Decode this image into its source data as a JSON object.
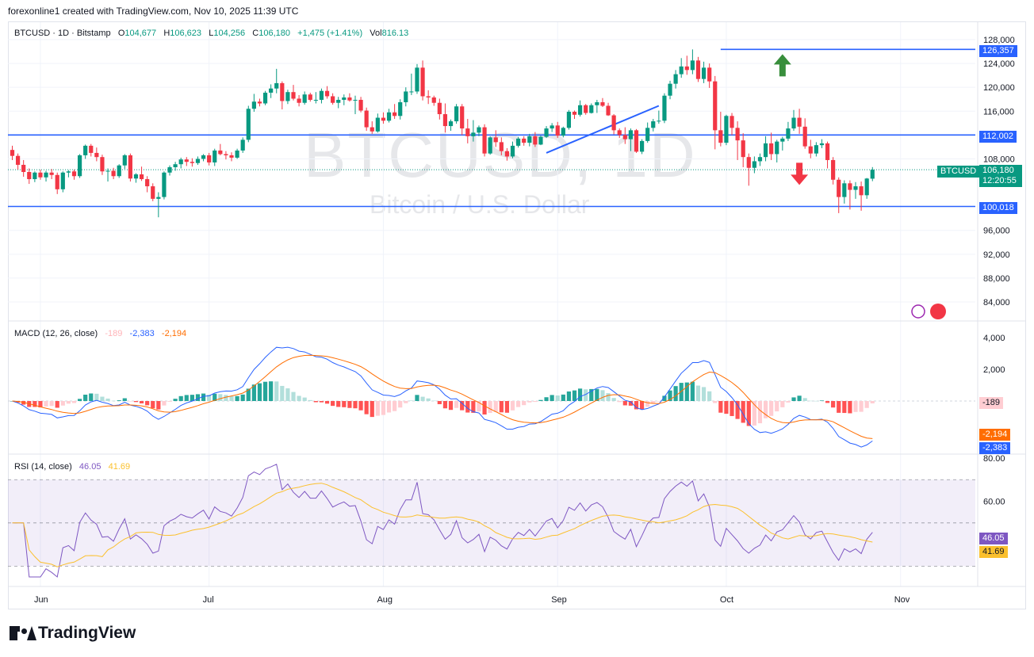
{
  "header": {
    "attribution": "forexonline1 created with TradingView.com, Nov 10, 2025 11:39 UTC"
  },
  "legend": {
    "symbol": "BTCUSD · 1D · Bitstamp",
    "open_label": "O",
    "open": "104,677",
    "high_label": "H",
    "high": "106,623",
    "low_label": "L",
    "low": "104,256",
    "close_label": "C",
    "close": "106,180",
    "change": "+1,475 (+1.41%)",
    "vol_label": "Vol",
    "vol": "816.13"
  },
  "watermark": {
    "symbol": "BTCUSD, 1D",
    "name": "Bitcoin / U.S. Dollar"
  },
  "price_axis": {
    "ticks": [
      "128,000",
      "124,000",
      "120,000",
      "116,000",
      "112,000",
      "108,000",
      "96,000",
      "92,000",
      "88,000",
      "84,000"
    ]
  },
  "price_tags": {
    "resistance": "126,357",
    "mid": "112,002",
    "support": "100,018",
    "symbol_tag": "BTCUSD",
    "last": "106,180",
    "countdown": "12:20:55"
  },
  "macd": {
    "label": "MACD (12, 26, close)",
    "hist": "-189",
    "macd": "-2,383",
    "signal": "-2,194",
    "ticks": [
      "4,000",
      "2,000"
    ],
    "tag_hist": "-189",
    "tag_signal": "-2,194",
    "tag_macd": "-2,383"
  },
  "rsi": {
    "label": "RSI (14, close)",
    "value": "46.05",
    "ma": "41.69",
    "ticks": [
      "80.00",
      "60.00"
    ],
    "tag_value": "46.05",
    "tag_ma": "41.69"
  },
  "time_axis": {
    "labels": [
      "Jun",
      "Jul",
      "Aug",
      "Sep",
      "Oct",
      "Nov"
    ]
  },
  "brand": {
    "name": "TradingView"
  },
  "colors": {
    "up": "#089981",
    "down": "#f23645",
    "level": "#2962ff",
    "macd": "#2962ff",
    "signal": "#ff6d00",
    "rsi": "#7e57c2",
    "rsi_ma": "#fbc02d"
  },
  "chart_data": {
    "type": "candlestick",
    "symbol": "BTCUSD",
    "interval": "1D",
    "x_start": "2025-05-27",
    "candles_ohlc": [
      [
        109500,
        110200,
        107800,
        108500
      ],
      [
        108500,
        108900,
        106200,
        107000
      ],
      [
        107000,
        107800,
        105000,
        105800
      ],
      [
        105800,
        106400,
        103800,
        104600
      ],
      [
        104600,
        105900,
        104100,
        105700
      ],
      [
        105700,
        106200,
        104500,
        104900
      ],
      [
        104900,
        106000,
        104200,
        105700
      ],
      [
        105700,
        106300,
        104600,
        105300
      ],
      [
        105300,
        105700,
        102100,
        102900
      ],
      [
        102900,
        105900,
        102400,
        105700
      ],
      [
        105700,
        106100,
        104900,
        105900
      ],
      [
        105900,
        106200,
        104500,
        105100
      ],
      [
        105100,
        108800,
        104800,
        108600
      ],
      [
        108600,
        110400,
        108000,
        110200
      ],
      [
        110200,
        110500,
        108400,
        109000
      ],
      [
        109000,
        109900,
        107600,
        108300
      ],
      [
        108300,
        108700,
        105300,
        105900
      ],
      [
        105900,
        106400,
        104200,
        106000
      ],
      [
        106000,
        106500,
        104600,
        105100
      ],
      [
        105100,
        107100,
        104800,
        106900
      ],
      [
        106900,
        108800,
        106300,
        108600
      ],
      [
        108600,
        108900,
        104200,
        104700
      ],
      [
        104700,
        105600,
        104000,
        105400
      ],
      [
        105400,
        106700,
        104300,
        104600
      ],
      [
        104600,
        105100,
        102400,
        103400
      ],
      [
        103400,
        103900,
        100900,
        101300
      ],
      [
        101300,
        102400,
        98200,
        101600
      ],
      [
        101600,
        105900,
        101200,
        105700
      ],
      [
        105700,
        106900,
        105200,
        106600
      ],
      [
        106600,
        107500,
        106000,
        107100
      ],
      [
        107100,
        108200,
        106400,
        107900
      ],
      [
        107900,
        108300,
        106800,
        107500
      ],
      [
        107500,
        108100,
        106700,
        107300
      ],
      [
        107300,
        108400,
        107000,
        108000
      ],
      [
        108000,
        108800,
        107600,
        108600
      ],
      [
        108600,
        109000,
        106900,
        107400
      ],
      [
        107400,
        109700,
        106800,
        109400
      ],
      [
        109400,
        110500,
        108600,
        108800
      ],
      [
        108800,
        109300,
        107900,
        108600
      ],
      [
        108600,
        109100,
        107600,
        108200
      ],
      [
        108200,
        109700,
        108000,
        109400
      ],
      [
        109400,
        111600,
        109000,
        111200
      ],
      [
        111200,
        116900,
        110800,
        116400
      ],
      [
        116400,
        118900,
        115900,
        117600
      ],
      [
        117600,
        118100,
        116800,
        117300
      ],
      [
        117300,
        119400,
        117000,
        119100
      ],
      [
        119100,
        120500,
        118200,
        119800
      ],
      [
        119800,
        123100,
        119000,
        120700
      ],
      [
        120700,
        121000,
        116300,
        117700
      ],
      [
        117700,
        119600,
        117200,
        119200
      ],
      [
        119200,
        120400,
        117800,
        118100
      ],
      [
        118100,
        118700,
        116800,
        117400
      ],
      [
        117400,
        119300,
        117100,
        118800
      ],
      [
        118800,
        119100,
        117600,
        117900
      ],
      [
        117900,
        119200,
        117300,
        117900
      ],
      [
        117900,
        119800,
        117300,
        119400
      ],
      [
        119400,
        120200,
        118100,
        118500
      ],
      [
        118500,
        119000,
        117100,
        117400
      ],
      [
        117400,
        118400,
        116500,
        117900
      ],
      [
        117900,
        118800,
        117000,
        118300
      ],
      [
        118300,
        119000,
        117600,
        117800
      ],
      [
        117800,
        118600,
        115500,
        117900
      ],
      [
        117900,
        118400,
        115800,
        116100
      ],
      [
        116100,
        116600,
        112700,
        113300
      ],
      [
        113300,
        114300,
        112200,
        112600
      ],
      [
        112600,
        115600,
        112400,
        114900
      ],
      [
        114900,
        115800,
        113900,
        114400
      ],
      [
        114400,
        116400,
        114100,
        115800
      ],
      [
        115800,
        117200,
        114700,
        115200
      ],
      [
        115200,
        118000,
        114600,
        117500
      ],
      [
        117500,
        120000,
        116800,
        119300
      ],
      [
        119300,
        122300,
        118700,
        119300
      ],
      [
        119300,
        123900,
        118900,
        123300
      ],
      [
        123300,
        124500,
        117800,
        118500
      ],
      [
        118500,
        119500,
        117200,
        118300
      ],
      [
        118300,
        118600,
        116900,
        117400
      ],
      [
        117400,
        118100,
        114600,
        115500
      ],
      [
        115500,
        117300,
        112400,
        113500
      ],
      [
        113500,
        114600,
        112700,
        114300
      ],
      [
        114300,
        117200,
        113900,
        116800
      ],
      [
        116800,
        117200,
        112000,
        113100
      ],
      [
        113100,
        114700,
        110600,
        111800
      ],
      [
        111800,
        114500,
        110900,
        112400
      ],
      [
        112400,
        113600,
        111800,
        113300
      ],
      [
        113300,
        113800,
        108400,
        108900
      ],
      [
        108900,
        111800,
        108700,
        111600
      ],
      [
        111600,
        112800,
        110000,
        110800
      ],
      [
        110800,
        111600,
        108600,
        109300
      ],
      [
        109300,
        109800,
        107700,
        108400
      ],
      [
        108400,
        110900,
        108100,
        110200
      ],
      [
        110200,
        111700,
        109900,
        111400
      ],
      [
        111400,
        111800,
        110200,
        110700
      ],
      [
        110700,
        112200,
        110100,
        111800
      ],
      [
        111800,
        112500,
        110000,
        110400
      ],
      [
        110400,
        111900,
        110300,
        111700
      ],
      [
        111700,
        113500,
        111500,
        113100
      ],
      [
        113100,
        114000,
        112500,
        113600
      ],
      [
        113600,
        114200,
        111500,
        111900
      ],
      [
        111900,
        113400,
        111600,
        113200
      ],
      [
        113200,
        116200,
        112900,
        115900
      ],
      [
        115900,
        116100,
        114700,
        115400
      ],
      [
        115400,
        117800,
        115100,
        117000
      ],
      [
        117000,
        117200,
        115400,
        115700
      ],
      [
        115700,
        117300,
        115600,
        117000
      ],
      [
        117000,
        117900,
        115700,
        117500
      ],
      [
        117500,
        118200,
        116700,
        116900
      ],
      [
        116900,
        117400,
        115200,
        115300
      ],
      [
        115300,
        115500,
        112100,
        112800
      ],
      [
        112800,
        113100,
        111500,
        112000
      ],
      [
        112000,
        113300,
        110500,
        111300
      ],
      [
        111300,
        113100,
        109300,
        112800
      ],
      [
        112800,
        113000,
        109000,
        109200
      ],
      [
        109200,
        111300,
        108800,
        111000
      ],
      [
        111000,
        114100,
        110700,
        113200
      ],
      [
        113200,
        114700,
        112600,
        114300
      ],
      [
        114300,
        116100,
        113900,
        114400
      ],
      [
        114400,
        119000,
        114000,
        118600
      ],
      [
        118600,
        121100,
        118000,
        120600
      ],
      [
        120600,
        122900,
        119800,
        122200
      ],
      [
        122200,
        124900,
        121600,
        123500
      ],
      [
        123500,
        125300,
        122100,
        122900
      ],
      [
        122900,
        126357,
        122200,
        124500
      ],
      [
        124500,
        125100,
        120900,
        121400
      ],
      [
        121400,
        124300,
        120700,
        123300
      ],
      [
        123300,
        124000,
        119900,
        121000
      ],
      [
        121000,
        121900,
        109600,
        112800
      ],
      [
        112800,
        115900,
        110100,
        110700
      ],
      [
        110700,
        115400,
        110300,
        115200
      ],
      [
        115200,
        115700,
        112000,
        113200
      ],
      [
        113200,
        114300,
        107800,
        111100
      ],
      [
        111100,
        112300,
        106600,
        108300
      ],
      [
        108300,
        108900,
        103500,
        106500
      ],
      [
        106500,
        108400,
        105600,
        107600
      ],
      [
        107600,
        108900,
        106800,
        108300
      ],
      [
        108300,
        111800,
        107600,
        110600
      ],
      [
        110600,
        112400,
        107800,
        108800
      ],
      [
        108800,
        111200,
        107400,
        110900
      ],
      [
        110900,
        111700,
        109400,
        111400
      ],
      [
        111400,
        114200,
        111000,
        113100
      ],
      [
        113100,
        116200,
        112700,
        114900
      ],
      [
        114900,
        116400,
        112200,
        113400
      ],
      [
        113400,
        114800,
        109700,
        110100
      ],
      [
        110100,
        111200,
        108100,
        108900
      ],
      [
        108900,
        110800,
        108400,
        110300
      ],
      [
        110300,
        111300,
        109800,
        110600
      ],
      [
        110600,
        110900,
        106400,
        107800
      ],
      [
        107800,
        108300,
        103700,
        104500
      ],
      [
        104500,
        104900,
        98900,
        101600
      ],
      [
        101600,
        104400,
        100500,
        103900
      ],
      [
        103900,
        104400,
        99500,
        102800
      ],
      [
        102800,
        104100,
        101300,
        103400
      ],
      [
        103400,
        104200,
        99300,
        101900
      ],
      [
        101900,
        104800,
        101300,
        104700
      ],
      [
        104677,
        106623,
        104256,
        106180
      ]
    ],
    "levels": [
      126357,
      112002,
      100018
    ],
    "trendline": {
      "from": [
        "2025-08-30",
        109000
      ],
      "to": [
        "2025-09-19",
        116900
      ]
    },
    "annotations": [
      "up-arrow above 126,357",
      "down-arrow below 112,002"
    ],
    "ylim": [
      82000,
      130000
    ],
    "macd_series": {
      "params": "12, 26, close",
      "last": {
        "hist": -189,
        "macd": -2383,
        "signal": -2194
      },
      "ylim": [
        -4000,
        4000
      ]
    },
    "rsi_series": {
      "params": "14, close",
      "last": {
        "rsi": 46.05,
        "ma": 41.69
      },
      "bands": [
        70,
        30
      ],
      "ylim": [
        20,
        80
      ]
    },
    "time_labels": [
      "Jun",
      "Jul",
      "Aug",
      "Sep",
      "Oct",
      "Nov"
    ]
  }
}
